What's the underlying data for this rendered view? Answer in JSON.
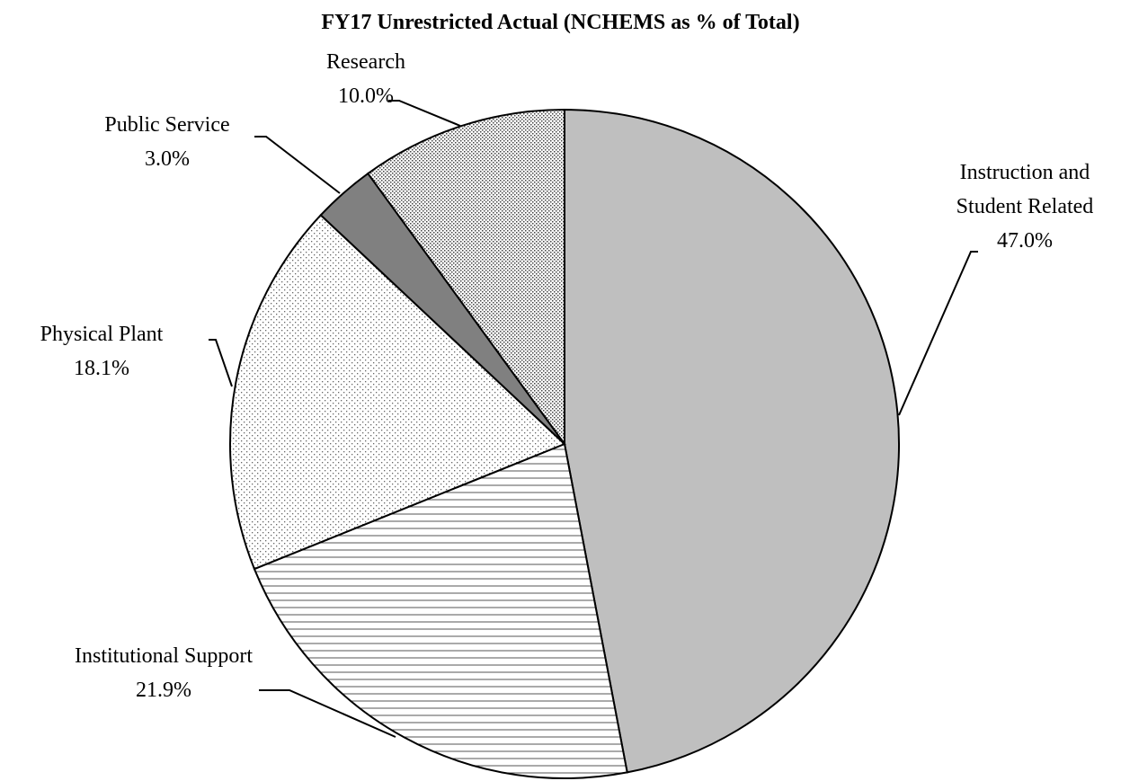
{
  "chart_data": {
    "type": "pie",
    "title": "FY17 Unrestricted Actual (NCHEMS as % of Total)",
    "categories": [
      "Instruction and Student Related",
      "Institutional Support",
      "Physical Plant",
      "Public Service",
      "Research"
    ],
    "values": [
      47.0,
      21.9,
      18.1,
      3.0,
      10.0
    ],
    "value_labels": [
      "47.0%",
      "21.9%",
      "18.1%",
      "3.0%",
      "10.0%"
    ]
  }
}
